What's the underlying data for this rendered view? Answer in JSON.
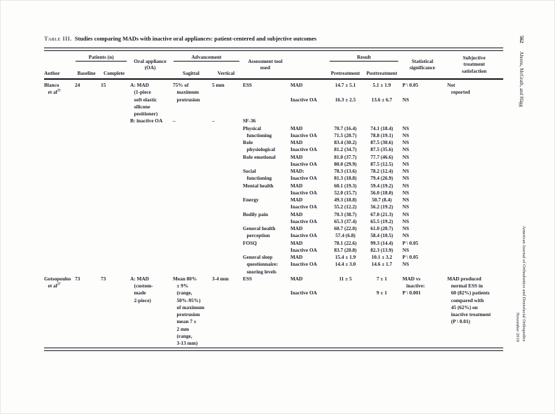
{
  "page": {
    "margin_header": {
      "page_number": "562",
      "authors": "Ahrens, McGrath, and Hägg"
    },
    "margin_footer": {
      "journal": "American Journal of Orthodontics and Dentofacial Orthopedics",
      "issue": "November 2010"
    }
  },
  "table": {
    "label": "Table III.",
    "title": "Studies comparing MADs with inactive oral appliances: patient-centered and subjective outcomes",
    "header": {
      "author": "Author",
      "patients": "Patients (n)",
      "baseline": "Baseline",
      "complete": "Complete",
      "oral_appliance": "Oral appliance\n(OA)",
      "advancement": "Advancement",
      "sagittal": "Sagittal",
      "vertical": "Vertical",
      "assessment": "Assessment tool\nused",
      "result": "Result",
      "pretreatment": "Pretreatment",
      "posttreatment": "Posttreatment",
      "statistical": "Statistical\nsignificance",
      "subjective": "Subjective\ntreatment\nsatisfaction"
    },
    "rows": [
      [
        "Blanco",
        "24",
        "15",
        "A: MAD",
        "75% of",
        "5 mm",
        "ESS",
        "MAD",
        "14.7 ± 5.1",
        "5.1 ± 1.9",
        "P \\ 0.05",
        "Not"
      ],
      [
        "   et al^{23}",
        "",
        "",
        "   (1-piece",
        "   maximum",
        "",
        "",
        "",
        "",
        "",
        "",
        "   reported"
      ],
      [
        "",
        "",
        "",
        "   soft elastic",
        "   protrusion",
        "",
        "",
        "Inactive OA",
        "16.3 ± 2.5",
        "13.6 ± 6.7",
        "NS",
        ""
      ],
      [
        "",
        "",
        "",
        "   silicone",
        "",
        "",
        "",
        "",
        "",
        "",
        "",
        ""
      ],
      [
        "",
        "",
        "",
        "   positioner)",
        "",
        "",
        "",
        "",
        "",
        "",
        "",
        ""
      ],
      [
        "",
        "",
        "",
        "B: inactive OA",
        "–",
        "–",
        "SF-36",
        "",
        "",
        "",
        "",
        ""
      ],
      [
        "",
        "",
        "",
        "",
        "",
        "",
        "Physical",
        "MAD",
        "70.7 (16.4)",
        "74.1 (18.4)",
        "NS",
        ""
      ],
      [
        "",
        "",
        "",
        "",
        "",
        "",
        "   functioning",
        "Inactive OA",
        "71.5 (20.7)",
        "78.8 (19.1)",
        "NS",
        ""
      ],
      [
        "",
        "",
        "",
        "",
        "",
        "",
        "Role",
        "MAD",
        "83.4 (30.2)",
        "87.5 (30.6)",
        "NS",
        ""
      ],
      [
        "",
        "",
        "",
        "",
        "",
        "",
        "   physiological",
        "Inactive OA",
        "81.2 (34.7)",
        "87.5 (35.6)",
        "NS",
        ""
      ],
      [
        "",
        "",
        "",
        "",
        "",
        "",
        "Role emotional",
        "MAD",
        "81.0 (37.7)",
        "77.7 (46.6)",
        "NS",
        ""
      ],
      [
        "",
        "",
        "",
        "",
        "",
        "",
        "",
        "Inactive OA",
        "80.0 (29.9)",
        "87.5 (12.5)",
        "NS",
        ""
      ],
      [
        "",
        "",
        "",
        "",
        "",
        "",
        "Social",
        "MAD:",
        "78.3 (13.6)",
        "78.2 (12.4)",
        "NS",
        ""
      ],
      [
        "",
        "",
        "",
        "",
        "",
        "",
        "   functioning",
        "Inactive OA",
        "81.3 (18.8)",
        "79.4 (26.9)",
        "NS",
        ""
      ],
      [
        "",
        "",
        "",
        "",
        "",
        "",
        "Mental health",
        "MAD",
        "60.1 (19.3)",
        "59.4 (19.2)",
        "NS",
        ""
      ],
      [
        "",
        "",
        "",
        "",
        "",
        "",
        "",
        "Inactive OA",
        "52.0 (15.7)",
        "56.0 (18.0)",
        "NS",
        ""
      ],
      [
        "",
        "",
        "",
        "",
        "",
        "",
        "Energy",
        "MAD",
        "49.3 (18.8)",
        "50.7 (8.4)",
        "NS",
        ""
      ],
      [
        "",
        "",
        "",
        "",
        "",
        "",
        "",
        "Inactive OA",
        "55.2 (12.2)",
        "56.2 (19.2)",
        "NS",
        ""
      ],
      [
        "",
        "",
        "",
        "",
        "",
        "",
        "Bodily pain",
        "MAD",
        "70.3 (38.7)",
        "67.0 (21.3)",
        "NS",
        ""
      ],
      [
        "",
        "",
        "",
        "",
        "",
        "",
        "",
        "Inactive OA",
        "65.3 (37.4)",
        "65.5 (19.2)",
        "NS",
        ""
      ],
      [
        "",
        "",
        "",
        "",
        "",
        "",
        "General health",
        "MAD",
        "60.7 (22.0)",
        "61.0 (20.7)",
        "NS",
        ""
      ],
      [
        "",
        "",
        "",
        "",
        "",
        "",
        "   perception",
        "Inactive OA",
        "57.4 (6.8)",
        "58.4 (10.5)",
        "NS",
        ""
      ],
      [
        "",
        "",
        "",
        "",
        "",
        "",
        "FOSQ",
        "MAD",
        "78.1 (22.6)",
        "99.3 (14.4)",
        "P \\ 0.05",
        ""
      ],
      [
        "",
        "",
        "",
        "",
        "",
        "",
        "",
        "Inactive OA",
        "83.7 (20.8)",
        "82.3 (13.9)",
        "NS",
        ""
      ],
      [
        "",
        "",
        "",
        "",
        "",
        "",
        "General sleep",
        "MAD",
        "15.4 ± 1.9",
        "10.1 ± 3.2",
        "P \\ 0.05",
        ""
      ],
      [
        "",
        "",
        "",
        "",
        "",
        "",
        "   questionnaire:",
        "Inactive OA",
        "14.4 ± 3.0",
        "14.6 ± 1.7",
        "NS",
        ""
      ],
      [
        "",
        "",
        "",
        "",
        "",
        "",
        "   snoring levels",
        "",
        "",
        "",
        "",
        ""
      ],
      [
        "Gotsopoulos",
        "73",
        "73",
        "A: MAD",
        "Mean 80%",
        "3-4 mm",
        "ESS",
        "MAD",
        "11 ± 5",
        "7 ± 1",
        "MAD vs",
        "MAD produced"
      ],
      [
        "   et al^{27}",
        "",
        "",
        "   (custom-",
        "   ± 9%",
        "",
        "",
        "",
        "",
        "",
        "   inactive:",
        "   normal ESS in"
      ],
      [
        "",
        "",
        "",
        "   made",
        "   (range,",
        "",
        "",
        "Inactive OA",
        "",
        "9 ± 1",
        "P \\ 0.001",
        "   60 (82%) patients"
      ],
      [
        "",
        "",
        "",
        "   2-piece)",
        "   50%-95%)",
        "",
        "",
        "",
        "",
        "",
        "",
        "   compared with"
      ],
      [
        "",
        "",
        "",
        "",
        "   of maximum",
        "",
        "",
        "",
        "",
        "",
        "",
        "   45 (62%) on"
      ],
      [
        "",
        "",
        "",
        "",
        "   protrusion",
        "",
        "",
        "",
        "",
        "",
        "",
        "   inactive treatment"
      ],
      [
        "",
        "",
        "",
        "",
        "   mean 7 ±",
        "",
        "",
        "",
        "",
        "",
        "",
        "   (P \\ 0.01)"
      ],
      [
        "",
        "",
        "",
        "",
        "   2 mm",
        "",
        "",
        "",
        "",
        "",
        "",
        ""
      ],
      [
        "",
        "",
        "",
        "",
        "   (range,",
        "",
        "",
        "",
        "",
        "",
        "",
        ""
      ],
      [
        "",
        "",
        "",
        "",
        "   3-13 mm)",
        "",
        "",
        "",
        "",
        "",
        "",
        ""
      ]
    ]
  }
}
